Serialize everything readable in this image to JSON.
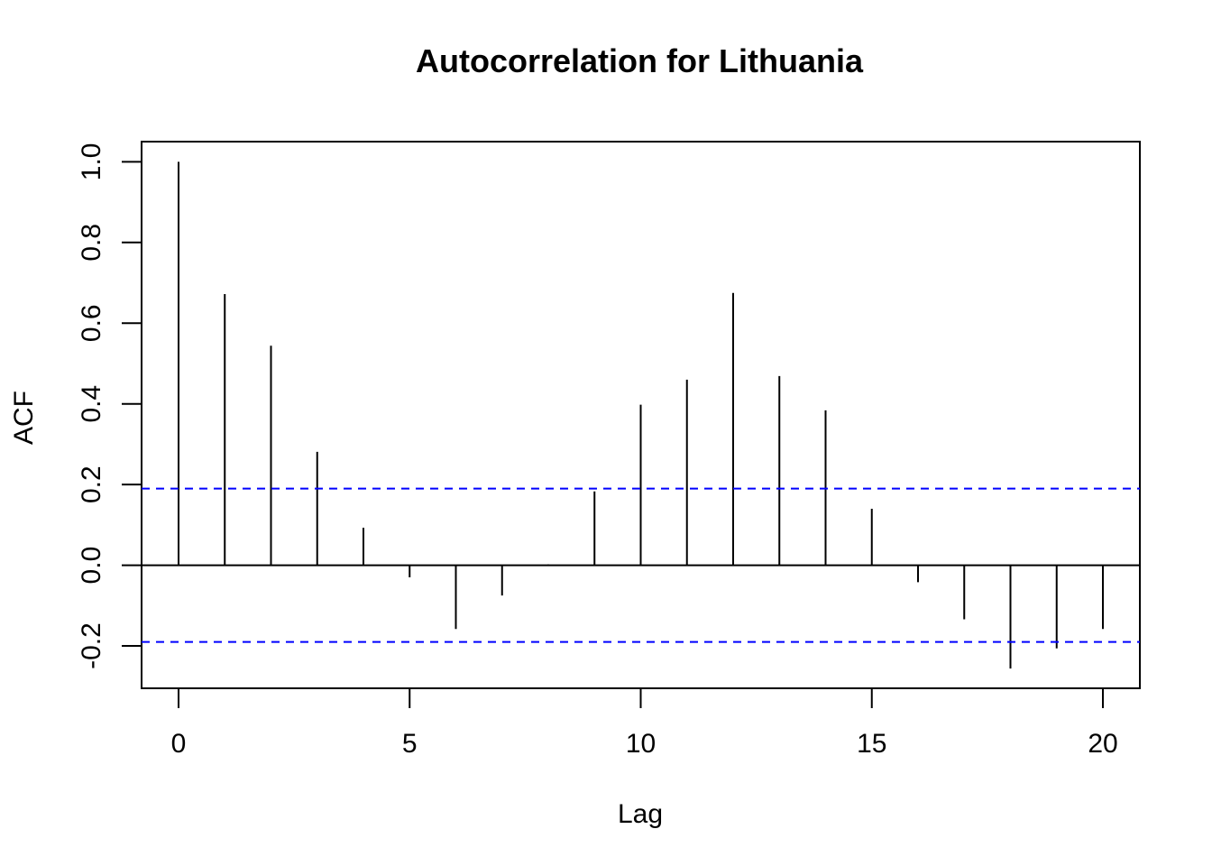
{
  "chart_data": {
    "type": "bar",
    "title": "Autocorrelation for Lithuania",
    "xlabel": "Lag",
    "ylabel": "ACF",
    "xlim": [
      -0.8,
      20.8
    ],
    "ylim": [
      -0.305,
      1.05
    ],
    "xticks": [
      0,
      5,
      10,
      15,
      20
    ],
    "xtick_labels": [
      "0",
      "5",
      "10",
      "15",
      "20"
    ],
    "yticks": [
      -0.2,
      0.0,
      0.2,
      0.4,
      0.6,
      0.8,
      1.0
    ],
    "ytick_labels": [
      "-0.2",
      "0.0",
      "0.2",
      "0.4",
      "0.6",
      "0.8",
      "1.0"
    ],
    "grid": false,
    "legend": "none",
    "series": [
      {
        "lags": [
          0,
          1,
          2,
          3,
          4,
          5,
          6,
          7,
          8,
          9,
          10,
          11,
          12,
          13,
          14,
          15,
          16,
          17,
          18,
          19,
          20
        ],
        "values": [
          1.0,
          0.672,
          0.544,
          0.281,
          0.093,
          -0.03,
          -0.158,
          -0.075,
          0.002,
          0.183,
          0.398,
          0.46,
          0.675,
          0.469,
          0.384,
          0.14,
          -0.042,
          -0.134,
          -0.256,
          -0.206,
          -0.158
        ],
        "color": "#000000"
      }
    ],
    "confidence_bounds": {
      "upper": 0.19,
      "lower": -0.19,
      "color": "#0000ff",
      "style": "dashed"
    },
    "zero_line": 0
  }
}
